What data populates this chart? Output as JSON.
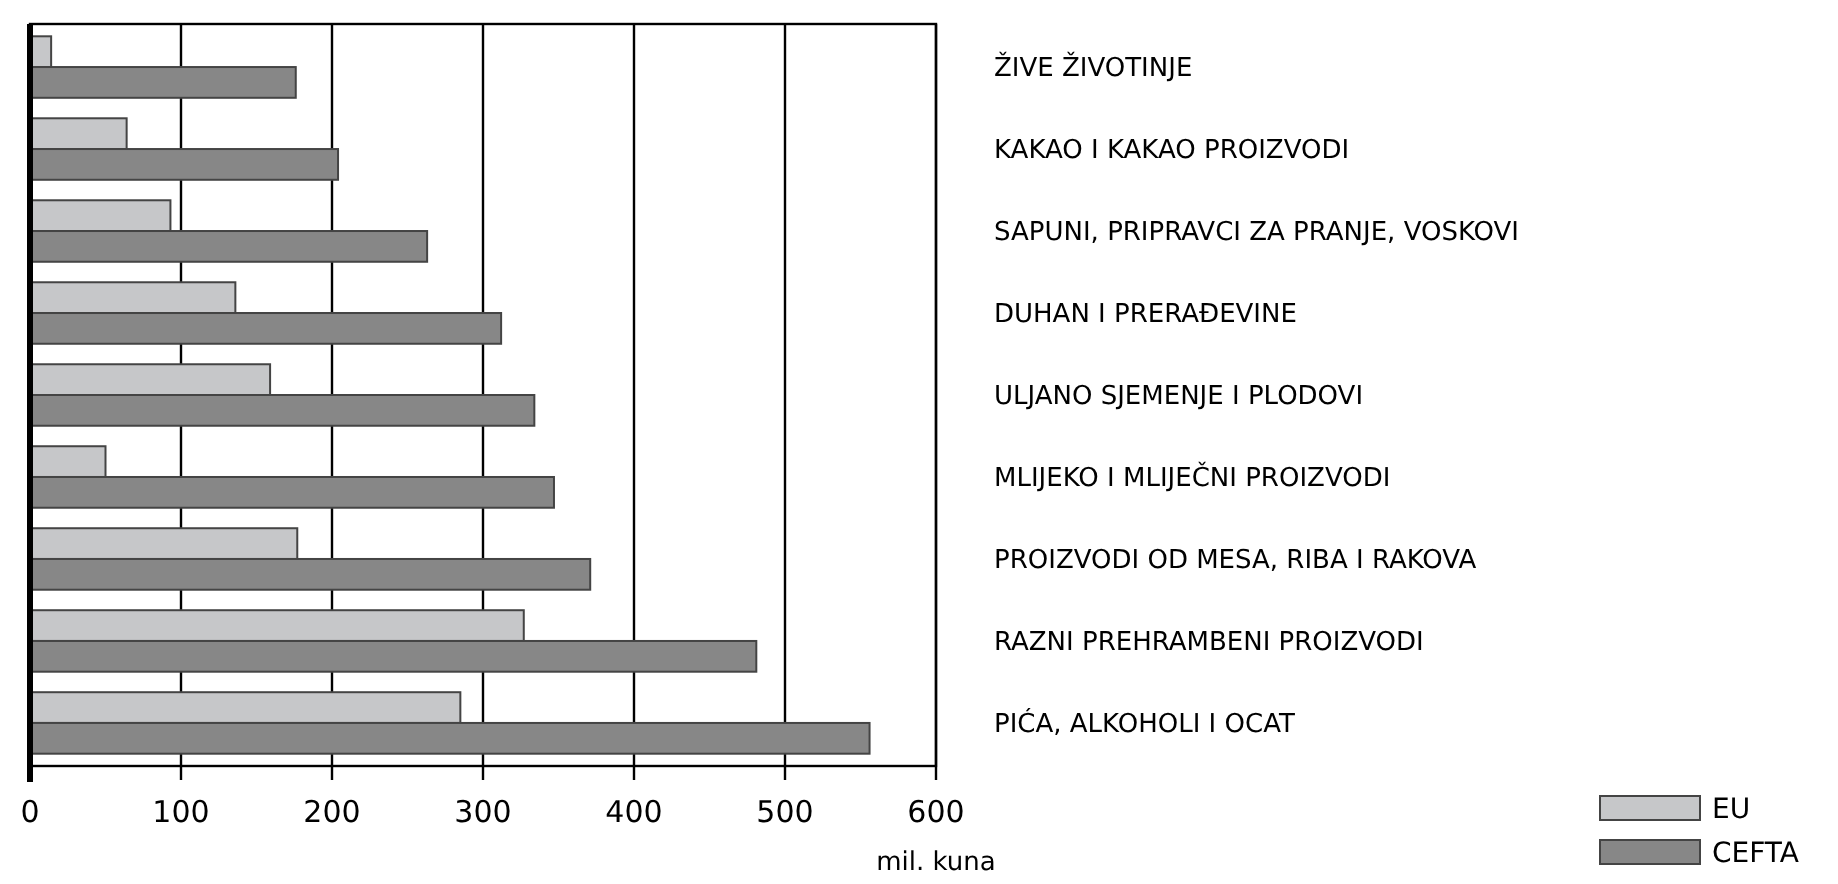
{
  "chart_data": {
    "type": "bar",
    "orientation": "horizontal",
    "categories": [
      "ŽIVE ŽIVOTINJE",
      "KAKAO I KAKAO PROIZVODI",
      "SAPUNI, PRIPRAVCI ZA PRANJE, VOSKOVI",
      "DUHAN I PRERAĐEVINE",
      "ULJANO SJEMENJE I PLODOVI",
      "MLIJEKO I MLIJEČNI PROIZVODI",
      "PROIZVODI OD MESA, RIBA I RAKOVA",
      "RAZNI PREHRAMBENI PROIZVODI",
      "PIĆA, ALKOHOLI I OCAT"
    ],
    "series": [
      {
        "name": "EU",
        "color": "#c6c7c9",
        "values": [
          14,
          64,
          93,
          136,
          159,
          50,
          177,
          327,
          285
        ]
      },
      {
        "name": "CEFTA",
        "color": "#878787",
        "values": [
          176,
          204,
          263,
          312,
          334,
          347,
          371,
          481,
          556
        ]
      }
    ],
    "xlabel": "mil. kuna",
    "xlim": [
      0,
      600
    ],
    "xticks": [
      0,
      100,
      200,
      300,
      400,
      500,
      600
    ],
    "grid": "x",
    "legend": "bottom right"
  }
}
